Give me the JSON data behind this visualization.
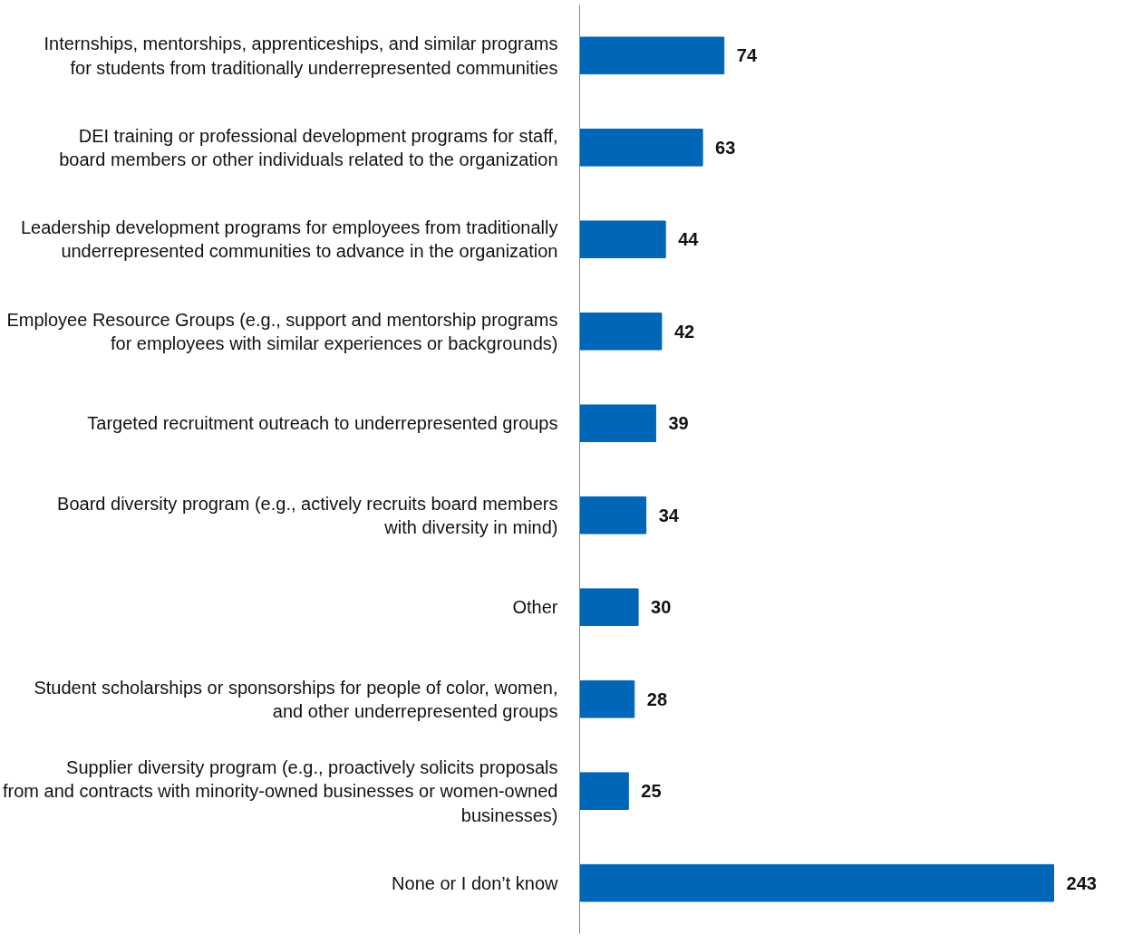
{
  "chart_data": {
    "type": "bar",
    "orientation": "horizontal",
    "data_labels": true,
    "color": "#0066b8",
    "categories": [
      "Internships, mentorships, apprenticeships, and similar programs for students from traditionally underrepresented communities",
      "DEI training or professional development programs for staff, board members or other individuals related to the organization",
      "Leadership development programs for employees from traditionally underrepresented communities to advance in the organization",
      "Employee Resource Groups (e.g., support and mentorship programs for employees with similar experiences or backgrounds)",
      "Targeted recruitment outreach to underrepresented groups",
      "Board diversity program (e.g., actively recruits board members with diversity in mind)",
      "Other",
      "Student scholarships or sponsorships for people of color, women, and other underrepresented groups",
      "Supplier diversity program (e.g., proactively solicits proposals from and contracts with minority-owned businesses or women-owned businesses)",
      "None or I don’t know"
    ],
    "values": [
      74,
      63,
      44,
      42,
      39,
      34,
      30,
      28,
      25,
      243
    ]
  }
}
